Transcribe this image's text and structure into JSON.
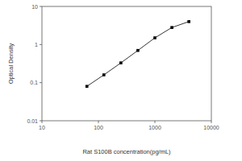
{
  "chart_data": {
    "type": "scatter",
    "x_label": "Rat S100B concentration(pg/mL)",
    "y_label": "Optical Density",
    "x": [
      62.5,
      125,
      250,
      500,
      1000,
      2000,
      4000
    ],
    "values": [
      0.08,
      0.16,
      0.33,
      0.7,
      1.5,
      2.8,
      4.0
    ],
    "color": "#000000",
    "marker": "square",
    "line_style": "solid",
    "log": true,
    "xlim": [
      10,
      10000
    ],
    "xticks": [
      10,
      100,
      1000,
      10000
    ],
    "ylim": [
      0.01,
      10
    ],
    "yticks": [
      0.01,
      0.1,
      1,
      10
    ],
    "grid": false
  }
}
